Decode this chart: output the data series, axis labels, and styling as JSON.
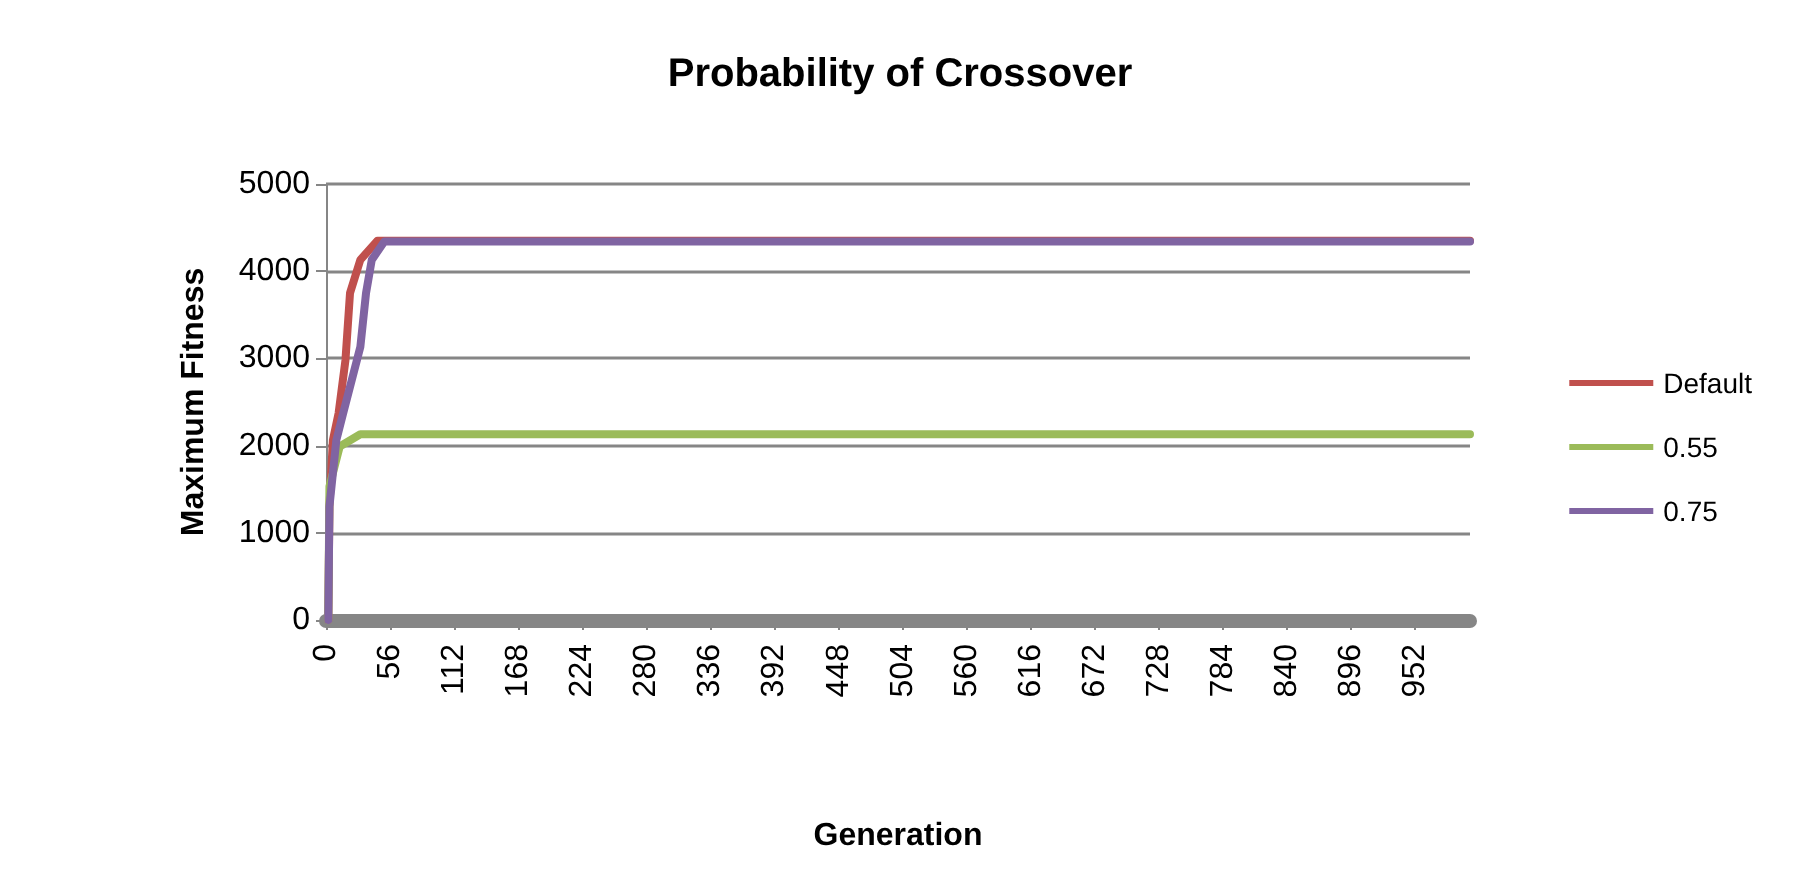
{
  "chart_data": {
    "type": "line",
    "title": "Probability of Crossover",
    "xlabel": "Generation",
    "ylabel": "Maximum Fitness",
    "xlim": [
      0,
      1000
    ],
    "xticks": [
      0,
      56,
      112,
      168,
      224,
      280,
      336,
      392,
      448,
      504,
      560,
      616,
      672,
      728,
      784,
      840,
      896,
      952
    ],
    "ylim": [
      0,
      5000
    ],
    "yticks": [
      0,
      1000,
      2000,
      3000,
      4000,
      5000
    ],
    "grid": "y",
    "legend": "right",
    "marker": "none",
    "line_style": "solid",
    "series": [
      {
        "name": "Default",
        "color": "#c0504d",
        "x": [
          2,
          3,
          6,
          11,
          17,
          21,
          30,
          45,
          1000
        ],
        "values": [
          0,
          1300,
          2060,
          2370,
          2980,
          3750,
          4130,
          4350,
          4350
        ]
      },
      {
        "name": "0.55",
        "color": "#9bbb59",
        "x": [
          2,
          3,
          12,
          30,
          1000
        ],
        "values": [
          0,
          1530,
          1990,
          2130,
          2130
        ]
      },
      {
        "name": "0.75",
        "color": "#8064a2",
        "x": [
          2,
          3,
          9,
          15,
          30,
          35,
          40,
          51,
          1000
        ],
        "values": [
          0,
          1300,
          2060,
          2370,
          3130,
          3750,
          4130,
          4340,
          4340
        ]
      }
    ]
  }
}
